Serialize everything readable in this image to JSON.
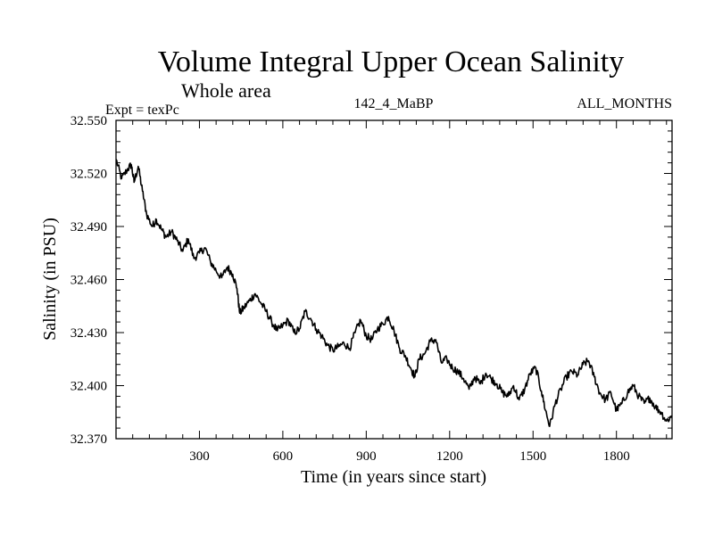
{
  "chart_data": {
    "type": "line",
    "title": "Volume Integral Upper Ocean Salinity",
    "subtitle": "Whole area",
    "expt_label": "Expt = texPc",
    "run_label": "142_4_MaBP",
    "months_label": "ALL_MONTHS",
    "xlabel": "Time (in years since start)",
    "ylabel": "Salinity (in PSU)",
    "xlim": [
      0,
      2000
    ],
    "ylim": [
      32.37,
      32.55
    ],
    "x_ticks": [
      300,
      600,
      900,
      1200,
      1500,
      1800
    ],
    "x_tick_labels": [
      "300",
      "600",
      "900",
      "1200",
      "1500",
      "1800"
    ],
    "y_ticks": [
      32.37,
      32.4,
      32.43,
      32.46,
      32.49,
      32.52,
      32.55
    ],
    "y_tick_labels": [
      "32.370",
      "32.400",
      "32.430",
      "32.460",
      "32.490",
      "32.520",
      "32.550"
    ],
    "grid": false,
    "series": [
      {
        "name": "Salinity",
        "x": [
          0,
          20,
          40,
          55,
          65,
          80,
          95,
          110,
          130,
          145,
          165,
          180,
          200,
          220,
          240,
          260,
          280,
          300,
          320,
          340,
          360,
          380,
          400,
          420,
          435,
          445,
          460,
          480,
          500,
          520,
          540,
          560,
          580,
          600,
          620,
          640,
          660,
          680,
          700,
          720,
          740,
          760,
          780,
          800,
          820,
          840,
          860,
          880,
          900,
          920,
          940,
          960,
          980,
          1000,
          1020,
          1040,
          1060,
          1075,
          1090,
          1110,
          1130,
          1150,
          1170,
          1190,
          1210,
          1230,
          1250,
          1270,
          1290,
          1310,
          1330,
          1350,
          1370,
          1390,
          1410,
          1430,
          1450,
          1470,
          1490,
          1510,
          1530,
          1545,
          1560,
          1580,
          1600,
          1620,
          1640,
          1660,
          1680,
          1700,
          1720,
          1740,
          1760,
          1780,
          1800,
          1820,
          1840,
          1860,
          1880,
          1900,
          1920,
          1940,
          1960,
          1980,
          2000
        ],
        "values": [
          32.528,
          32.517,
          32.522,
          32.525,
          32.515,
          32.524,
          32.51,
          32.497,
          32.49,
          32.494,
          32.488,
          32.484,
          32.487,
          32.482,
          32.476,
          32.483,
          32.472,
          32.475,
          32.478,
          32.47,
          32.465,
          32.461,
          32.467,
          32.463,
          32.455,
          32.441,
          32.444,
          32.448,
          32.452,
          32.447,
          32.442,
          32.436,
          32.431,
          32.434,
          32.437,
          32.43,
          32.432,
          32.442,
          32.438,
          32.432,
          32.428,
          32.423,
          32.42,
          32.422,
          32.424,
          32.421,
          32.43,
          32.437,
          32.428,
          32.426,
          32.432,
          32.435,
          32.439,
          32.431,
          32.421,
          32.417,
          32.41,
          32.405,
          32.415,
          32.418,
          32.425,
          32.426,
          32.413,
          32.415,
          32.41,
          32.408,
          32.404,
          32.398,
          32.405,
          32.401,
          32.407,
          32.404,
          32.401,
          32.396,
          32.394,
          32.4,
          32.392,
          32.398,
          32.407,
          32.41,
          32.397,
          32.386,
          32.377,
          32.39,
          32.398,
          32.405,
          32.408,
          32.406,
          32.412,
          32.414,
          32.405,
          32.396,
          32.392,
          32.396,
          32.386,
          32.39,
          32.396,
          32.4,
          32.394,
          32.39,
          32.393,
          32.388,
          32.385,
          32.38,
          32.383
        ]
      }
    ]
  }
}
